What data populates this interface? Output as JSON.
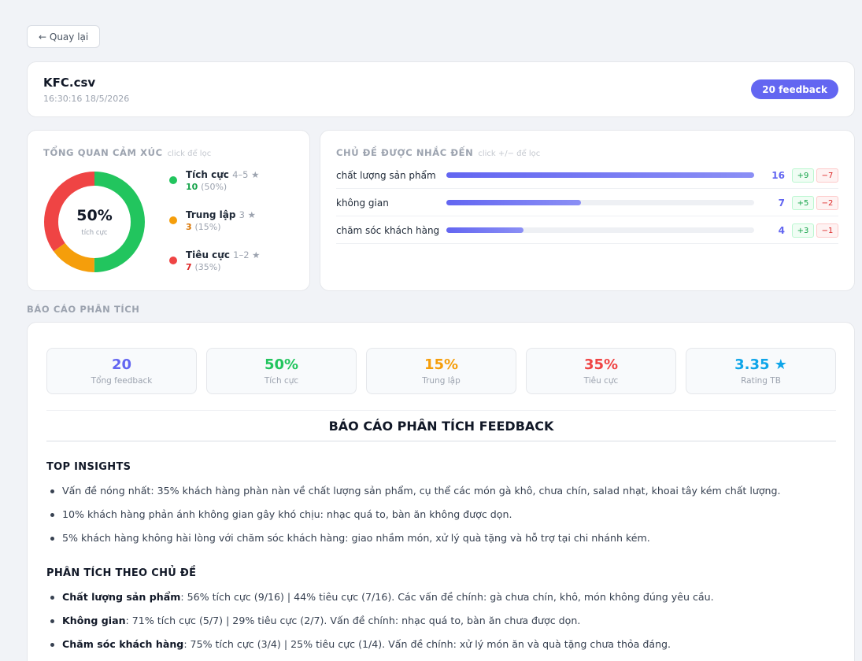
{
  "back_label": "← Quay lại",
  "file": {
    "name": "KFC.csv",
    "time": "16:30:16 18/5/2026",
    "badge": "20 feedback"
  },
  "sentiment": {
    "title": "TỔNG QUAN CẢM XÚC",
    "hint": "click để lọc",
    "center_pct": "50%",
    "center_label": "tích cực",
    "segments": [
      {
        "name": "Tích cực",
        "range": "4–5 ★",
        "count": "10",
        "pct": "(50%)",
        "fraction": 0.5,
        "color": "#22c55e"
      },
      {
        "name": "Trung lập",
        "range": "3 ★",
        "count": "3",
        "pct": "(15%)",
        "fraction": 0.15,
        "color": "#f59e0b"
      },
      {
        "name": "Tiêu cực",
        "range": "1–2 ★",
        "count": "7",
        "pct": "(35%)",
        "fraction": 0.35,
        "color": "#ef4444"
      }
    ]
  },
  "topics": {
    "title": "CHỦ ĐỀ ĐƯỢC NHẮC ĐẾN",
    "hint": "click +/− để lọc",
    "max": 16,
    "items": [
      {
        "name": "chất lượng sản phẩm",
        "count": 16,
        "count_label": "16",
        "pos": "+9",
        "neg": "−7"
      },
      {
        "name": "không gian",
        "count": 7,
        "count_label": "7",
        "pos": "+5",
        "neg": "−2"
      },
      {
        "name": "chăm sóc khách hàng",
        "count": 4,
        "count_label": "4",
        "pos": "+3",
        "neg": "−1"
      }
    ]
  },
  "report": {
    "section_label": "BÁO CÁO PHÂN TÍCH",
    "stats": [
      {
        "value": "20",
        "label": "Tổng feedback",
        "color": "#6366f1"
      },
      {
        "value": "50%",
        "label": "Tích cực",
        "color": "#22c55e"
      },
      {
        "value": "15%",
        "label": "Trung lập",
        "color": "#f59e0b"
      },
      {
        "value": "35%",
        "label": "Tiêu cực",
        "color": "#ef4444"
      },
      {
        "value": "3.35 ★",
        "label": "Rating TB",
        "color": "#0ea5e9"
      }
    ],
    "title": "BÁO CÁO PHÂN TÍCH FEEDBACK",
    "top_insights_heading": "TOP INSIGHTS",
    "top_insights": [
      "Vấn đề nóng nhất: 35% khách hàng phàn nàn về chất lượng sản phẩm, cụ thể các món gà khô, chưa chín, salad nhạt, khoai tây kém chất lượng.",
      "10% khách hàng phản ánh không gian gây khó chịu: nhạc quá to, bàn ăn không được dọn.",
      "5% khách hàng không hài lòng với chăm sóc khách hàng: giao nhầm món, xử lý quà tặng và hỗ trợ tại chi nhánh kém."
    ],
    "topic_analysis_heading": "PHÂN TÍCH THEO CHỦ ĐỀ",
    "topic_analysis": [
      {
        "label": "Chất lượng sản phẩm",
        "text": ": 56% tích cực (9/16) | 44% tiêu cực (7/16). Các vấn đề chính: gà chưa chín, khô, món không đúng yêu cầu."
      },
      {
        "label": "Không gian",
        "text": ": 71% tích cực (5/7) | 29% tiêu cực (2/7). Vấn đề chính: nhạc quá to, bàn ăn chưa được dọn."
      },
      {
        "label": "Chăm sóc khách hàng",
        "text": ": 75% tích cực (3/4) | 25% tiêu cực (1/4). Vấn đề chính: xử lý món ăn và quà tặng chưa thỏa đáng."
      }
    ]
  }
}
